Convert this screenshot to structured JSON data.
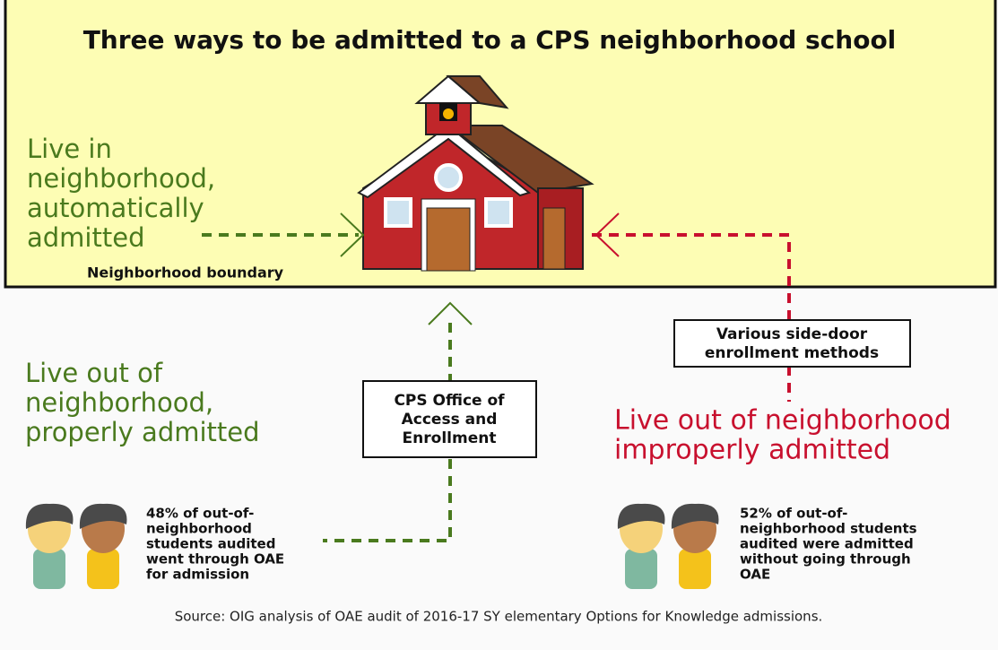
{
  "title": "Three ways to be admitted to a CPS neighborhood school",
  "boundary_label": "Neighborhood boundary",
  "paths": [
    {
      "lines": [
        "Live in",
        "neighborhood,",
        "automatically",
        "admitted"
      ]
    },
    {
      "lines": [
        "Live out of",
        "neighborhood,",
        "properly admitted"
      ]
    },
    {
      "lines": [
        "Live out of neighborhood",
        "improperly admitted"
      ]
    }
  ],
  "boxes": [
    {
      "lines": [
        "CPS Office of",
        "Access and",
        "Enrollment"
      ]
    },
    {
      "lines": [
        "Various side-door",
        "enrollment methods"
      ]
    }
  ],
  "notes": [
    {
      "lines": [
        "48% of out-of-",
        "neighborhood",
        "students audited",
        "went through OAE",
        "for admission"
      ]
    },
    {
      "lines": [
        "52% of out-of-",
        "neighborhood students",
        "audited were admitted",
        "without going through",
        "OAE"
      ]
    }
  ],
  "source": "Source: OIG analysis of OAE audit of 2016-17 SY elementary Options for Knowledge admissions."
}
